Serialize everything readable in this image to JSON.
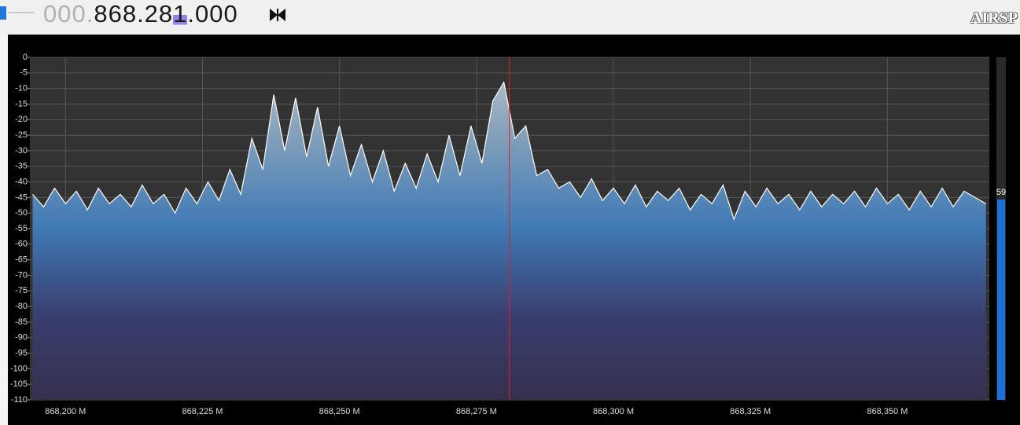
{
  "header": {
    "freq_dim": "000.",
    "freq_main": "868.28",
    "freq_cursor": "1",
    "freq_tail": ".000",
    "logo": "AIRSP"
  },
  "side_meter": {
    "label": "59"
  },
  "chart_data": {
    "type": "line",
    "x": [
      868194,
      868196,
      868198,
      868200,
      868202,
      868204,
      868206,
      868208,
      868210,
      868212,
      868214,
      868216,
      868218,
      868220,
      868222,
      868224,
      868226,
      868228,
      868230,
      868232,
      868234,
      868236,
      868238,
      868240,
      868242,
      868244,
      868246,
      868248,
      868250,
      868252,
      868254,
      868256,
      868258,
      868260,
      868262,
      868264,
      868266,
      868268,
      868270,
      868272,
      868274,
      868276,
      868278,
      868280,
      868282,
      868284,
      868286,
      868288,
      868290,
      868292,
      868294,
      868296,
      868298,
      868300,
      868302,
      868304,
      868306,
      868308,
      868310,
      868312,
      868314,
      868316,
      868318,
      868320,
      868322,
      868324,
      868326,
      868328,
      868330,
      868332,
      868334,
      868336,
      868338,
      868340,
      868342,
      868344,
      868346,
      868348,
      868350,
      868352,
      868354,
      868356,
      868358,
      868360,
      868362,
      868364,
      868366,
      868368
    ],
    "values": [
      -44,
      -48,
      -42,
      -47,
      -43,
      -49,
      -42,
      -47,
      -44,
      -48,
      -41,
      -47,
      -44,
      -50,
      -42,
      -47,
      -40,
      -46,
      -36,
      -44,
      -26,
      -36,
      -12,
      -30,
      -13,
      -32,
      -16,
      -35,
      -22,
      -38,
      -28,
      -40,
      -30,
      -43,
      -34,
      -42,
      -31,
      -40,
      -25,
      -38,
      -22,
      -34,
      -14,
      -8,
      -26,
      -22,
      -38,
      -36,
      -42,
      -40,
      -45,
      -39,
      -46,
      -42,
      -47,
      -41,
      -48,
      -43,
      -46,
      -42,
      -49,
      -44,
      -47,
      -41,
      -52,
      -43,
      -48,
      -42,
      -47,
      -44,
      -49,
      -43,
      -48,
      -44,
      -47,
      -43,
      -48,
      -42,
      -47,
      -44,
      -49,
      -43,
      -48,
      -42,
      -48,
      -43,
      -45,
      -47
    ],
    "color": "#ffffff",
    "marker_x": 868281,
    "marker_color": "#e02020",
    "xlim": [
      868193.5,
      868368.6
    ],
    "xticks": [
      {
        "value": 868200,
        "label": "868,200 M"
      },
      {
        "value": 868225,
        "label": "868,225 M"
      },
      {
        "value": 868250,
        "label": "868,250 M"
      },
      {
        "value": 868275,
        "label": "868,275 M"
      },
      {
        "value": 868300,
        "label": "868,300 M"
      },
      {
        "value": 868325,
        "label": "868,325 M"
      },
      {
        "value": 868350,
        "label": "868,350 M"
      }
    ],
    "ylim": [
      -110,
      0
    ],
    "yticks": [
      0,
      -5,
      -10,
      -15,
      -20,
      -25,
      -30,
      -35,
      -40,
      -45,
      -50,
      -55,
      -60,
      -65,
      -70,
      -75,
      -80,
      -85,
      -90,
      -95,
      -100,
      -105,
      -110
    ],
    "grid": true
  }
}
